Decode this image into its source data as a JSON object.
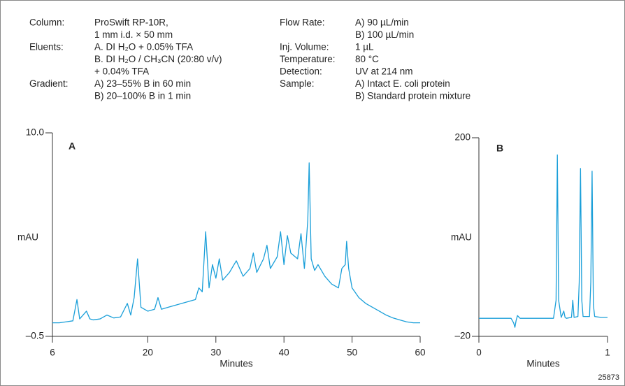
{
  "conditions": {
    "left": [
      {
        "label": "Column:",
        "lines": [
          "ProSwift  RP-10R,",
          "1 mm i.d. × 50 mm"
        ]
      },
      {
        "label": "Eluents:",
        "lines": [
          "A. DI H₂O + 0.05% TFA",
          "B. DI H₂O / CH₃CN (20:80 v/v)",
          "+ 0.04% TFA"
        ]
      },
      {
        "label": "Gradient:",
        "lines": [
          "A) 23–55% B in 60 min",
          "B) 20–100% B in 1 min"
        ]
      }
    ],
    "right": [
      {
        "label": "Flow Rate:",
        "lines": [
          "A) 90 µL/min",
          "B) 100 µL/min"
        ]
      },
      {
        "label": "Inj. Volume:",
        "lines": [
          "1 µL"
        ]
      },
      {
        "label": "Temperature:",
        "lines": [
          "80 °C"
        ]
      },
      {
        "label": "Detection:",
        "lines": [
          "UV at 214 nm"
        ]
      },
      {
        "label": "Sample:",
        "lines": [
          "A) Intact E. coli protein",
          "B) Standard protein mixture"
        ]
      }
    ]
  },
  "figure_id": "25873",
  "chart_data": [
    {
      "type": "line",
      "label": "A",
      "y_label": "mAU",
      "x_label": "Minutes",
      "color": "#1a9fd9",
      "x": [
        6,
        7,
        8,
        9,
        9.6,
        10,
        11,
        11.5,
        12,
        13,
        14,
        15,
        16,
        17,
        17.5,
        18,
        18.5,
        19,
        20,
        21,
        21.5,
        22,
        23,
        24,
        25,
        26,
        27,
        27.5,
        28,
        28.5,
        29,
        29.5,
        30,
        30.5,
        31,
        32,
        33,
        34,
        35,
        35.5,
        36,
        37,
        37.5,
        38,
        39,
        39.5,
        40,
        40.5,
        41,
        42,
        42.5,
        43,
        43.5,
        43.7,
        44,
        44.5,
        45,
        46,
        47,
        48,
        48.5,
        49,
        49.2,
        49.5,
        50,
        51,
        52,
        53,
        54,
        55,
        56,
        57,
        58,
        59,
        60
      ],
      "values": [
        0.2,
        0.2,
        0.25,
        0.3,
        1.4,
        0.4,
        0.8,
        0.4,
        0.35,
        0.4,
        0.6,
        0.45,
        0.5,
        1.2,
        0.6,
        1.5,
        3.5,
        1.0,
        0.8,
        0.9,
        1.5,
        0.9,
        1.0,
        1.1,
        1.2,
        1.3,
        1.4,
        2.0,
        1.8,
        4.9,
        2.0,
        3.2,
        2.5,
        3.5,
        2.4,
        2.8,
        3.4,
        2.6,
        3.0,
        3.8,
        2.8,
        3.5,
        4.2,
        3.0,
        3.6,
        4.9,
        3.2,
        4.7,
        3.8,
        3.5,
        4.8,
        3.0,
        5.5,
        8.45,
        3.5,
        2.9,
        3.2,
        2.6,
        2.2,
        2.0,
        3.0,
        3.2,
        4.4,
        3.0,
        2.0,
        1.5,
        1.2,
        1.0,
        0.8,
        0.6,
        0.45,
        0.35,
        0.25,
        0.2,
        0.2
      ],
      "xlim": [
        6,
        60
      ],
      "xticks": [
        6,
        20,
        30,
        40,
        50,
        60
      ],
      "ylim": [
        -0.5,
        10.0
      ],
      "yticks": [
        {
          "value": -0.5,
          "label": "–0.5"
        },
        {
          "value": 10.0,
          "label": "10.0"
        }
      ]
    },
    {
      "type": "line",
      "label": "B",
      "y_label": "mAU",
      "x_label": "Minutes",
      "color": "#1a9fd9",
      "x": [
        0,
        0.25,
        0.27,
        0.28,
        0.29,
        0.3,
        0.32,
        0.58,
        0.6,
        0.61,
        0.62,
        0.64,
        0.66,
        0.67,
        0.68,
        0.72,
        0.73,
        0.74,
        0.77,
        0.78,
        0.79,
        0.8,
        0.81,
        0.86,
        0.87,
        0.88,
        0.89,
        0.9,
        0.95,
        1
      ],
      "values": [
        0,
        0,
        -5,
        -10,
        -2,
        3,
        0,
        0,
        20,
        181,
        20,
        1,
        8,
        1,
        0,
        1,
        20,
        1,
        2,
        40,
        166,
        20,
        2,
        2,
        40,
        163,
        15,
        2,
        1,
        1
      ],
      "xlim": [
        0,
        1
      ],
      "xticks": [
        0,
        1
      ],
      "ylim": [
        -20,
        200
      ],
      "yticks": [
        {
          "value": -20,
          "label": "–20"
        },
        200
      ]
    }
  ]
}
